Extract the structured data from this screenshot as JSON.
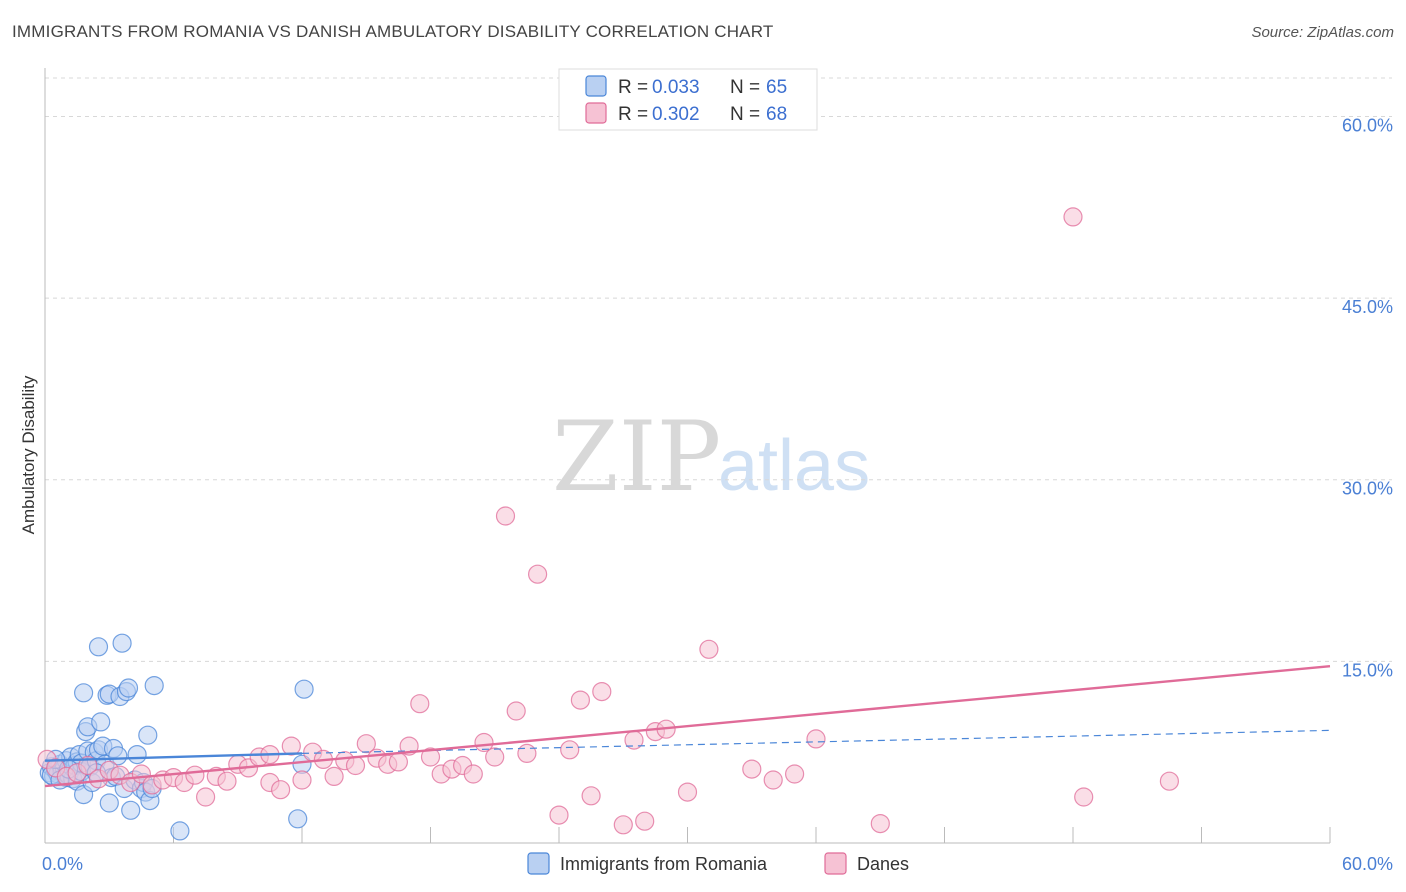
{
  "header": {
    "title": "IMMIGRANTS FROM ROMANIA VS DANISH AMBULATORY DISABILITY CORRELATION CHART",
    "source": "Source: ZipAtlas.com"
  },
  "watermark": {
    "zip": "ZIP",
    "atlas": "atlas"
  },
  "legend": {
    "blue": {
      "r_label": "R = ",
      "r_value": "0.033",
      "n_label": "N = ",
      "n_value": "65"
    },
    "pink": {
      "r_label": "R = ",
      "r_value": "0.302",
      "n_label": "N = ",
      "n_value": "68"
    }
  },
  "bottom_legend": {
    "blue_label": "Immigrants from Romania",
    "pink_label": "Danes"
  },
  "colors": {
    "blue": "#4a86d8",
    "blue_fill": "#b9d0f2",
    "pink": "#e06b98",
    "pink_fill": "#f6c2d4",
    "tick": "#4a7fd4",
    "grid": "#d8d8d8"
  },
  "chart_data": {
    "type": "scatter",
    "title": "IMMIGRANTS FROM ROMANIA VS DANISH AMBULATORY DISABILITY CORRELATION CHART",
    "xlabel": "",
    "ylabel": "Ambulatory Disability",
    "xlim": [
      0,
      60
    ],
    "ylim": [
      0,
      64
    ],
    "x_ticks": [
      "0.0%",
      "60.0%"
    ],
    "y_ticks": [
      {
        "value": 15,
        "label": "15.0%"
      },
      {
        "value": 30,
        "label": "30.0%"
      },
      {
        "value": 45,
        "label": "45.0%"
      },
      {
        "value": 60,
        "label": "60.0%"
      }
    ],
    "series": [
      {
        "name": "Immigrants from Romania",
        "color": "blue",
        "r": 0.033,
        "n": 65,
        "trend": {
          "x0": 0,
          "y0": 6.8,
          "x1": 12,
          "y1": 7.4,
          "dash_x1": 60,
          "dash_y1": 9.3
        },
        "points": [
          [
            0.2,
            5.8
          ],
          [
            0.3,
            6.3
          ],
          [
            0.4,
            5.5
          ],
          [
            0.5,
            6.0
          ],
          [
            0.6,
            5.7
          ],
          [
            0.7,
            6.5
          ],
          [
            0.8,
            5.9
          ],
          [
            0.9,
            6.2
          ],
          [
            1.0,
            5.4
          ],
          [
            1.0,
            6.8
          ],
          [
            1.1,
            5.6
          ],
          [
            1.2,
            6.0
          ],
          [
            1.2,
            7.1
          ],
          [
            1.3,
            5.3
          ],
          [
            1.4,
            6.4
          ],
          [
            1.5,
            6.7
          ],
          [
            1.5,
            5.1
          ],
          [
            1.6,
            7.3
          ],
          [
            1.7,
            5.9
          ],
          [
            1.7,
            6.6
          ],
          [
            1.8,
            12.4
          ],
          [
            1.8,
            4.0
          ],
          [
            1.9,
            9.2
          ],
          [
            2.0,
            7.6
          ],
          [
            2.0,
            9.6
          ],
          [
            2.1,
            6.3
          ],
          [
            2.2,
            5.0
          ],
          [
            2.3,
            7.5
          ],
          [
            2.4,
            6.8
          ],
          [
            2.5,
            16.2
          ],
          [
            2.5,
            7.7
          ],
          [
            2.6,
            10.0
          ],
          [
            2.7,
            8.0
          ],
          [
            2.8,
            6.5
          ],
          [
            2.9,
            12.2
          ],
          [
            3.0,
            12.3
          ],
          [
            3.0,
            3.3
          ],
          [
            3.1,
            5.4
          ],
          [
            3.2,
            7.8
          ],
          [
            3.3,
            5.5
          ],
          [
            3.4,
            7.2
          ],
          [
            3.5,
            12.1
          ],
          [
            3.6,
            16.5
          ],
          [
            3.7,
            4.5
          ],
          [
            3.8,
            12.5
          ],
          [
            3.9,
            12.8
          ],
          [
            4.0,
            2.7
          ],
          [
            4.2,
            5.2
          ],
          [
            4.3,
            7.3
          ],
          [
            4.5,
            4.5
          ],
          [
            4.6,
            5.0
          ],
          [
            4.7,
            4.2
          ],
          [
            4.8,
            8.9
          ],
          [
            4.9,
            3.5
          ],
          [
            5.0,
            4.5
          ],
          [
            5.1,
            13.0
          ],
          [
            6.3,
            1.0
          ],
          [
            11.8,
            2.0
          ],
          [
            12.0,
            6.5
          ],
          [
            12.1,
            12.7
          ],
          [
            0.3,
            5.6
          ],
          [
            0.5,
            6.9
          ],
          [
            0.7,
            5.2
          ],
          [
            1.1,
            6.1
          ],
          [
            2.4,
            5.8
          ]
        ]
      },
      {
        "name": "Danes",
        "color": "pink",
        "r": 0.302,
        "n": 68,
        "trend": {
          "x0": 0,
          "y0": 4.7,
          "x1": 60,
          "y1": 14.6
        },
        "points": [
          [
            0.1,
            6.9
          ],
          [
            0.5,
            6.2
          ],
          [
            1.0,
            5.5
          ],
          [
            1.5,
            5.8
          ],
          [
            2.0,
            6.4
          ],
          [
            2.5,
            5.3
          ],
          [
            3.0,
            6.0
          ],
          [
            3.5,
            5.6
          ],
          [
            4.0,
            5.0
          ],
          [
            4.5,
            5.7
          ],
          [
            5.0,
            4.8
          ],
          [
            5.5,
            5.2
          ],
          [
            6.0,
            5.4
          ],
          [
            6.5,
            5.0
          ],
          [
            7.0,
            5.6
          ],
          [
            7.5,
            3.8
          ],
          [
            8.0,
            5.5
          ],
          [
            8.5,
            5.1
          ],
          [
            9.0,
            6.5
          ],
          [
            9.5,
            6.2
          ],
          [
            10.0,
            7.1
          ],
          [
            10.5,
            5.0
          ],
          [
            11.0,
            4.4
          ],
          [
            11.5,
            8.0
          ],
          [
            12.0,
            5.2
          ],
          [
            12.5,
            7.5
          ],
          [
            13.0,
            6.9
          ],
          [
            13.5,
            5.5
          ],
          [
            14.0,
            6.8
          ],
          [
            14.5,
            6.4
          ],
          [
            15.0,
            8.2
          ],
          [
            15.5,
            7.0
          ],
          [
            16.0,
            6.5
          ],
          [
            16.5,
            6.7
          ],
          [
            17.0,
            8.0
          ],
          [
            17.5,
            11.5
          ],
          [
            18.0,
            7.1
          ],
          [
            18.5,
            5.7
          ],
          [
            19.0,
            6.1
          ],
          [
            19.5,
            6.4
          ],
          [
            20.0,
            5.7
          ],
          [
            20.5,
            8.3
          ],
          [
            21.0,
            7.1
          ],
          [
            21.5,
            27.0
          ],
          [
            22.0,
            10.9
          ],
          [
            22.5,
            7.4
          ],
          [
            23.0,
            22.2
          ],
          [
            24.0,
            2.3
          ],
          [
            24.5,
            7.7
          ],
          [
            25.0,
            11.8
          ],
          [
            25.5,
            3.9
          ],
          [
            26.0,
            12.5
          ],
          [
            27.0,
            1.5
          ],
          [
            27.5,
            8.5
          ],
          [
            28.0,
            1.8
          ],
          [
            28.5,
            9.2
          ],
          [
            29.0,
            9.4
          ],
          [
            30.0,
            4.2
          ],
          [
            31.0,
            16.0
          ],
          [
            33.0,
            6.1
          ],
          [
            34.0,
            5.2
          ],
          [
            35.0,
            5.7
          ],
          [
            36.0,
            8.6
          ],
          [
            39.0,
            1.6
          ],
          [
            48.0,
            51.7
          ],
          [
            48.5,
            3.8
          ],
          [
            52.5,
            5.1
          ],
          [
            10.5,
            7.3
          ]
        ]
      }
    ]
  }
}
